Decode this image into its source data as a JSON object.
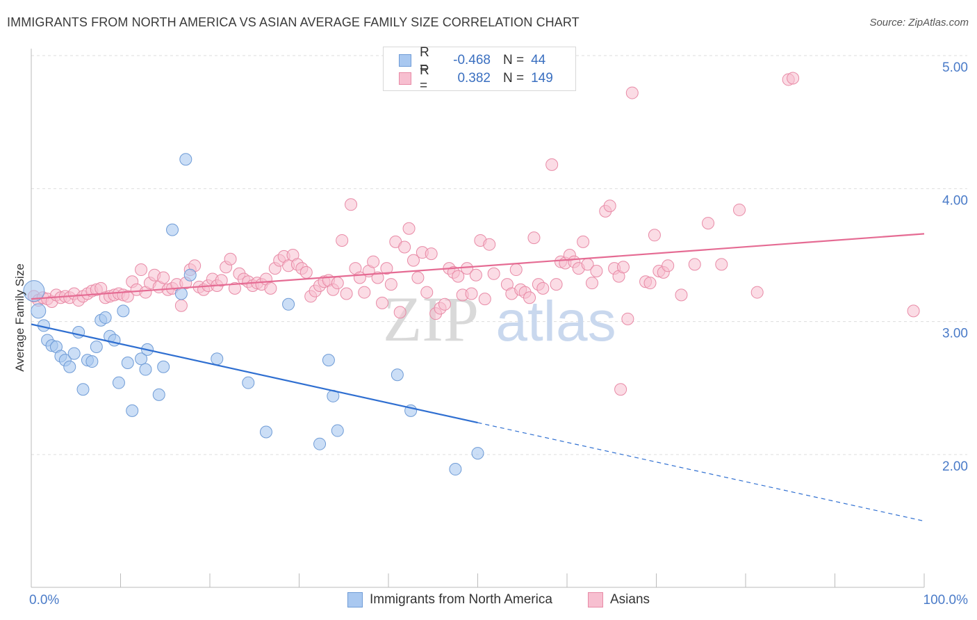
{
  "header": {
    "title": "IMMIGRANTS FROM NORTH AMERICA VS ASIAN AVERAGE FAMILY SIZE CORRELATION CHART",
    "source": "Source: ZipAtlas.com"
  },
  "watermark": {
    "zip": "ZIP",
    "atlas": "atlas"
  },
  "legend": {
    "rows": [
      {
        "r_label": "R =",
        "r_value": "-0.468",
        "n_label": "N =",
        "n_value": "44",
        "color": "#a9c8f0",
        "border": "#6e9bd6"
      },
      {
        "r_label": "R =",
        "r_value": "0.382",
        "n_label": "N =",
        "n_value": "149",
        "color": "#f7bfd0",
        "border": "#e88aa6"
      }
    ]
  },
  "bottom_legend": [
    {
      "label": "Immigrants from North America",
      "color": "#a9c8f0",
      "border": "#6e9bd6"
    },
    {
      "label": "Asians",
      "color": "#f7bfd0",
      "border": "#e88aa6"
    }
  ],
  "chart_data": {
    "type": "scatter",
    "title": "IMMIGRANTS FROM NORTH AMERICA VS ASIAN AVERAGE FAMILY SIZE CORRELATION CHART",
    "xlabel": "",
    "ylabel": "Average Family Size",
    "xlim": [
      0,
      100
    ],
    "ylim": [
      1.0,
      5.1
    ],
    "x_tick_labels": [
      "0.0%",
      "100.0%"
    ],
    "y_ticks": [
      2.0,
      3.0,
      4.0,
      5.0
    ],
    "y_tick_labels": [
      "2.00",
      "3.00",
      "4.00",
      "5.00"
    ],
    "grid": "horizontal dashed",
    "legend_position": "top-center",
    "series": [
      {
        "name": "Immigrants from North America",
        "color": "#a9c8f0",
        "stroke": "#6e9bd6",
        "trend": {
          "x0": 0,
          "y0": 2.98,
          "x1": 50,
          "y1": 2.24,
          "dash_to_x": 100,
          "dash_to_y": 1.5,
          "color": "#2f6fd1"
        },
        "points": [
          [
            0.3,
            3.23
          ],
          [
            0.8,
            3.08
          ],
          [
            1.4,
            2.97
          ],
          [
            1.8,
            2.86
          ],
          [
            2.3,
            2.82
          ],
          [
            2.8,
            2.81
          ],
          [
            3.3,
            2.74
          ],
          [
            3.8,
            2.71
          ],
          [
            4.3,
            2.66
          ],
          [
            4.8,
            2.76
          ],
          [
            5.3,
            2.92
          ],
          [
            5.8,
            2.49
          ],
          [
            6.3,
            2.71
          ],
          [
            6.8,
            2.7
          ],
          [
            7.3,
            2.81
          ],
          [
            7.8,
            3.01
          ],
          [
            8.3,
            3.03
          ],
          [
            8.8,
            2.89
          ],
          [
            9.3,
            2.86
          ],
          [
            9.8,
            2.54
          ],
          [
            10.3,
            3.08
          ],
          [
            10.8,
            2.69
          ],
          [
            11.3,
            2.33
          ],
          [
            12.3,
            2.72
          ],
          [
            12.8,
            2.64
          ],
          [
            13.0,
            2.79
          ],
          [
            14.3,
            2.45
          ],
          [
            14.8,
            2.66
          ],
          [
            15.8,
            3.69
          ],
          [
            16.8,
            3.21
          ],
          [
            17.3,
            4.22
          ],
          [
            17.8,
            3.35
          ],
          [
            20.8,
            2.72
          ],
          [
            24.3,
            2.54
          ],
          [
            26.3,
            2.17
          ],
          [
            28.8,
            3.13
          ],
          [
            32.3,
            2.08
          ],
          [
            33.3,
            2.71
          ],
          [
            33.8,
            2.44
          ],
          [
            34.3,
            2.18
          ],
          [
            41.0,
            2.6
          ],
          [
            42.5,
            2.33
          ],
          [
            47.5,
            1.89
          ],
          [
            50.0,
            2.01
          ]
        ]
      },
      {
        "name": "Asians",
        "color": "#f7bfd0",
        "stroke": "#e88aa6",
        "trend": {
          "x0": 0,
          "y0": 3.17,
          "x1": 100,
          "y1": 3.66,
          "color": "#e56b93"
        },
        "points": [
          [
            0.3,
            3.19
          ],
          [
            0.8,
            3.16
          ],
          [
            1.3,
            3.18
          ],
          [
            1.8,
            3.17
          ],
          [
            2.3,
            3.15
          ],
          [
            2.8,
            3.2
          ],
          [
            3.3,
            3.18
          ],
          [
            3.8,
            3.19
          ],
          [
            4.3,
            3.18
          ],
          [
            4.8,
            3.21
          ],
          [
            5.3,
            3.16
          ],
          [
            5.8,
            3.19
          ],
          [
            6.3,
            3.21
          ],
          [
            6.8,
            3.23
          ],
          [
            7.3,
            3.24
          ],
          [
            7.8,
            3.25
          ],
          [
            8.3,
            3.18
          ],
          [
            8.8,
            3.19
          ],
          [
            9.3,
            3.2
          ],
          [
            9.8,
            3.21
          ],
          [
            10.3,
            3.2
          ],
          [
            10.8,
            3.19
          ],
          [
            11.3,
            3.3
          ],
          [
            11.8,
            3.24
          ],
          [
            12.3,
            3.39
          ],
          [
            12.8,
            3.22
          ],
          [
            13.3,
            3.29
          ],
          [
            13.8,
            3.35
          ],
          [
            14.3,
            3.26
          ],
          [
            14.8,
            3.33
          ],
          [
            15.3,
            3.24
          ],
          [
            15.8,
            3.25
          ],
          [
            16.3,
            3.28
          ],
          [
            16.8,
            3.12
          ],
          [
            17.3,
            3.29
          ],
          [
            17.8,
            3.39
          ],
          [
            18.3,
            3.42
          ],
          [
            18.8,
            3.26
          ],
          [
            19.3,
            3.24
          ],
          [
            19.8,
            3.27
          ],
          [
            20.3,
            3.32
          ],
          [
            20.8,
            3.27
          ],
          [
            21.3,
            3.31
          ],
          [
            21.8,
            3.41
          ],
          [
            22.3,
            3.47
          ],
          [
            22.8,
            3.25
          ],
          [
            23.3,
            3.36
          ],
          [
            23.8,
            3.32
          ],
          [
            24.3,
            3.3
          ],
          [
            24.8,
            3.27
          ],
          [
            25.3,
            3.29
          ],
          [
            25.8,
            3.28
          ],
          [
            26.3,
            3.32
          ],
          [
            26.8,
            3.25
          ],
          [
            27.3,
            3.4
          ],
          [
            27.8,
            3.46
          ],
          [
            28.3,
            3.49
          ],
          [
            28.8,
            3.42
          ],
          [
            29.3,
            3.5
          ],
          [
            29.8,
            3.43
          ],
          [
            30.3,
            3.4
          ],
          [
            30.8,
            3.37
          ],
          [
            31.3,
            3.19
          ],
          [
            31.8,
            3.23
          ],
          [
            32.3,
            3.27
          ],
          [
            32.8,
            3.3
          ],
          [
            33.3,
            3.31
          ],
          [
            33.8,
            3.24
          ],
          [
            34.3,
            3.29
          ],
          [
            34.8,
            3.61
          ],
          [
            35.3,
            3.21
          ],
          [
            35.8,
            3.88
          ],
          [
            36.3,
            3.4
          ],
          [
            36.8,
            3.33
          ],
          [
            37.3,
            3.22
          ],
          [
            37.8,
            3.38
          ],
          [
            38.3,
            3.45
          ],
          [
            38.8,
            3.33
          ],
          [
            39.3,
            3.14
          ],
          [
            39.8,
            3.4
          ],
          [
            40.3,
            3.28
          ],
          [
            40.8,
            3.6
          ],
          [
            41.3,
            3.07
          ],
          [
            41.8,
            3.56
          ],
          [
            42.3,
            3.7
          ],
          [
            42.8,
            3.46
          ],
          [
            43.3,
            3.33
          ],
          [
            43.8,
            3.52
          ],
          [
            44.3,
            3.22
          ],
          [
            44.8,
            3.51
          ],
          [
            45.3,
            3.06
          ],
          [
            45.8,
            3.1
          ],
          [
            46.3,
            3.13
          ],
          [
            46.8,
            3.4
          ],
          [
            47.3,
            3.37
          ],
          [
            47.8,
            3.34
          ],
          [
            48.3,
            3.2
          ],
          [
            48.8,
            3.4
          ],
          [
            49.3,
            3.21
          ],
          [
            49.8,
            3.35
          ],
          [
            50.3,
            3.61
          ],
          [
            50.8,
            3.17
          ],
          [
            51.3,
            3.58
          ],
          [
            51.8,
            3.36
          ],
          [
            53.3,
            3.28
          ],
          [
            53.8,
            3.21
          ],
          [
            54.3,
            3.39
          ],
          [
            54.8,
            3.24
          ],
          [
            55.3,
            3.22
          ],
          [
            55.8,
            3.18
          ],
          [
            56.3,
            3.63
          ],
          [
            56.8,
            3.28
          ],
          [
            57.3,
            3.25
          ],
          [
            58.3,
            4.18
          ],
          [
            58.8,
            3.28
          ],
          [
            59.3,
            3.45
          ],
          [
            59.8,
            3.44
          ],
          [
            60.3,
            3.5
          ],
          [
            60.8,
            3.45
          ],
          [
            61.3,
            3.4
          ],
          [
            61.8,
            3.6
          ],
          [
            62.3,
            3.43
          ],
          [
            62.8,
            3.29
          ],
          [
            63.3,
            3.38
          ],
          [
            64.3,
            3.83
          ],
          [
            64.8,
            3.87
          ],
          [
            65.3,
            3.4
          ],
          [
            65.8,
            3.34
          ],
          [
            66.3,
            3.41
          ],
          [
            66.8,
            3.02
          ],
          [
            67.3,
            4.72
          ],
          [
            68.8,
            3.3
          ],
          [
            69.3,
            3.29
          ],
          [
            69.8,
            3.65
          ],
          [
            70.3,
            3.38
          ],
          [
            70.8,
            3.37
          ],
          [
            71.3,
            3.42
          ],
          [
            72.8,
            3.2
          ],
          [
            74.3,
            3.43
          ],
          [
            75.8,
            3.74
          ],
          [
            77.3,
            3.43
          ],
          [
            79.3,
            3.84
          ],
          [
            81.3,
            3.22
          ],
          [
            84.8,
            4.82
          ],
          [
            85.3,
            4.83
          ],
          [
            98.8,
            3.08
          ],
          [
            66.0,
            2.49
          ]
        ]
      }
    ]
  }
}
